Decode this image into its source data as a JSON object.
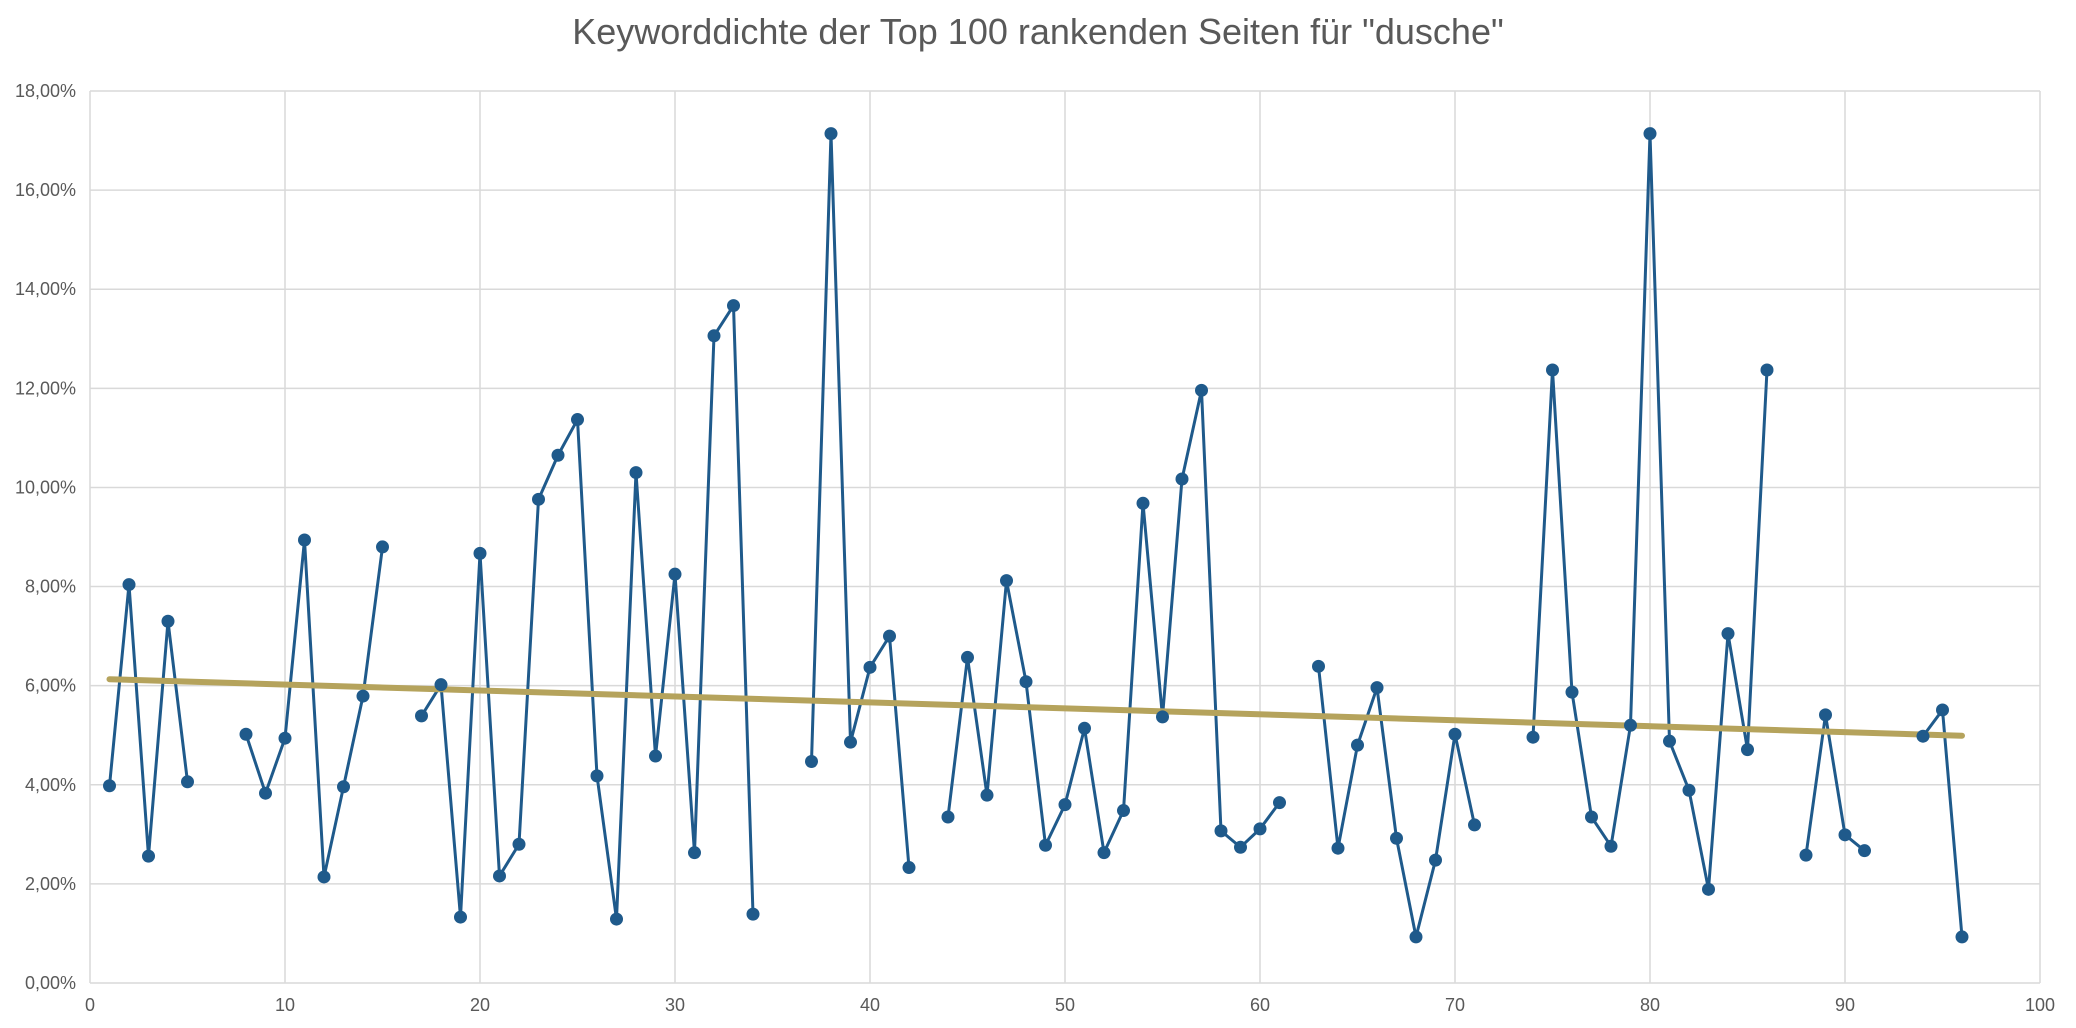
{
  "chart_data": {
    "type": "line",
    "title": "Keyworddichte der Top 100 rankenden Seiten für \"dusche\"",
    "xlabel": "",
    "ylabel": "",
    "xlim": [
      0,
      100
    ],
    "ylim": [
      0,
      18
    ],
    "x_ticks": [
      0,
      10,
      20,
      30,
      40,
      50,
      60,
      70,
      80,
      90,
      100
    ],
    "y_ticks": [
      0,
      2,
      4,
      6,
      8,
      10,
      12,
      14,
      16,
      18
    ],
    "x_tick_labels": [
      "0",
      "10",
      "20",
      "30",
      "40",
      "50",
      "60",
      "70",
      "80",
      "90",
      "100"
    ],
    "y_tick_labels": [
      "0,00%",
      "2,00%",
      "4,00%",
      "6,00%",
      "8,00%",
      "10,00%",
      "12,00%",
      "14,00%",
      "16,00%",
      "18,00%"
    ],
    "grid": true,
    "legend": "none",
    "colors": {
      "series": "#1F5A8B",
      "trend": "#B5A35C",
      "grid": "#D9D9D9",
      "text": "#595959"
    },
    "series": [
      {
        "unit": "%",
        "points": [
          [
            1,
            3.98
          ],
          [
            2,
            8.04
          ],
          [
            3,
            2.56
          ],
          [
            4,
            7.3
          ],
          [
            5,
            4.06
          ],
          [
            6,
            null
          ],
          [
            7,
            null
          ],
          [
            8,
            5.02
          ],
          [
            9,
            3.83
          ],
          [
            10,
            4.94
          ],
          [
            11,
            8.94
          ],
          [
            12,
            2.14
          ],
          [
            13,
            3.96
          ],
          [
            14,
            5.79
          ],
          [
            15,
            8.8
          ],
          [
            16,
            null
          ],
          [
            17,
            5.39
          ],
          [
            18,
            6.02
          ],
          [
            19,
            1.33
          ],
          [
            20,
            8.67
          ],
          [
            21,
            2.16
          ],
          [
            22,
            2.8
          ],
          [
            23,
            9.76
          ],
          [
            24,
            10.65
          ],
          [
            25,
            11.37
          ],
          [
            26,
            4.18
          ],
          [
            27,
            1.29
          ],
          [
            28,
            10.3
          ],
          [
            29,
            4.58
          ],
          [
            30,
            8.25
          ],
          [
            31,
            2.63
          ],
          [
            32,
            13.06
          ],
          [
            33,
            13.67
          ],
          [
            34,
            1.39
          ],
          [
            35,
            null
          ],
          [
            36,
            null
          ],
          [
            37,
            4.47
          ],
          [
            38,
            17.14
          ],
          [
            39,
            4.86
          ],
          [
            40,
            6.37
          ],
          [
            41,
            7.0
          ],
          [
            42,
            2.33
          ],
          [
            43,
            null
          ],
          [
            44,
            3.35
          ],
          [
            45,
            6.57
          ],
          [
            46,
            3.79
          ],
          [
            47,
            8.12
          ],
          [
            48,
            6.08
          ],
          [
            49,
            2.78
          ],
          [
            50,
            3.6
          ],
          [
            51,
            5.14
          ],
          [
            52,
            2.63
          ],
          [
            53,
            3.48
          ],
          [
            54,
            9.68
          ],
          [
            55,
            5.37
          ],
          [
            56,
            10.17
          ],
          [
            57,
            11.96
          ],
          [
            58,
            3.07
          ],
          [
            59,
            2.74
          ],
          [
            60,
            3.11
          ],
          [
            61,
            3.64
          ],
          [
            62,
            null
          ],
          [
            63,
            6.39
          ],
          [
            64,
            2.72
          ],
          [
            65,
            4.8
          ],
          [
            66,
            5.96
          ],
          [
            67,
            2.92
          ],
          [
            68,
            0.93
          ],
          [
            69,
            2.48
          ],
          [
            70,
            5.02
          ],
          [
            71,
            3.19
          ],
          [
            72,
            null
          ],
          [
            73,
            null
          ],
          [
            74,
            4.96
          ],
          [
            75,
            12.37
          ],
          [
            76,
            5.87
          ],
          [
            77,
            3.35
          ],
          [
            78,
            2.76
          ],
          [
            79,
            5.2
          ],
          [
            80,
            17.14
          ],
          [
            81,
            4.88
          ],
          [
            82,
            3.89
          ],
          [
            83,
            1.89
          ],
          [
            84,
            7.05
          ],
          [
            85,
            4.71
          ],
          [
            86,
            12.37
          ],
          [
            87,
            null
          ],
          [
            88,
            2.58
          ],
          [
            89,
            5.41
          ],
          [
            90,
            2.99
          ],
          [
            91,
            2.67
          ],
          [
            92,
            null
          ],
          [
            93,
            null
          ],
          [
            94,
            4.98
          ],
          [
            95,
            5.51
          ],
          [
            96,
            0.93
          ]
        ]
      }
    ],
    "trendline": {
      "type": "linear",
      "start": [
        1,
        6.13
      ],
      "end": [
        96,
        4.99
      ]
    }
  }
}
